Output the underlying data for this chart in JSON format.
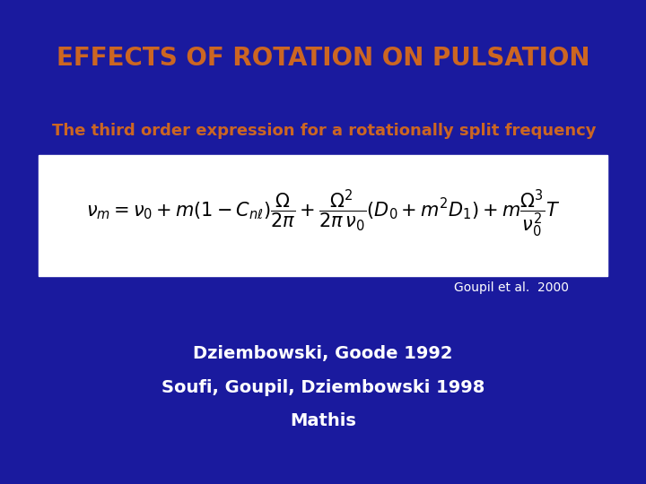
{
  "background_color": "#1a1a9e",
  "title": "EFFECTS OF ROTATION ON PULSATION",
  "title_color": "#cc6622",
  "title_fontsize": 20,
  "subtitle": "The third order expression for a rotationally split frequency",
  "subtitle_color": "#cc6622",
  "subtitle_fontsize": 13,
  "formula_fontsize": 15,
  "formula_box_color": "#ffffff",
  "citation": "Goupil et al.  2000",
  "citation_color": "#ffffff",
  "citation_fontsize": 10,
  "references_line1": "Dziembowski, Goode 1992",
  "references_line2": "Soufi, Goupil, Dziembowski 1998",
  "references_line3": "Mathis",
  "references_color": "#ffffff",
  "references_fontsize": 14
}
